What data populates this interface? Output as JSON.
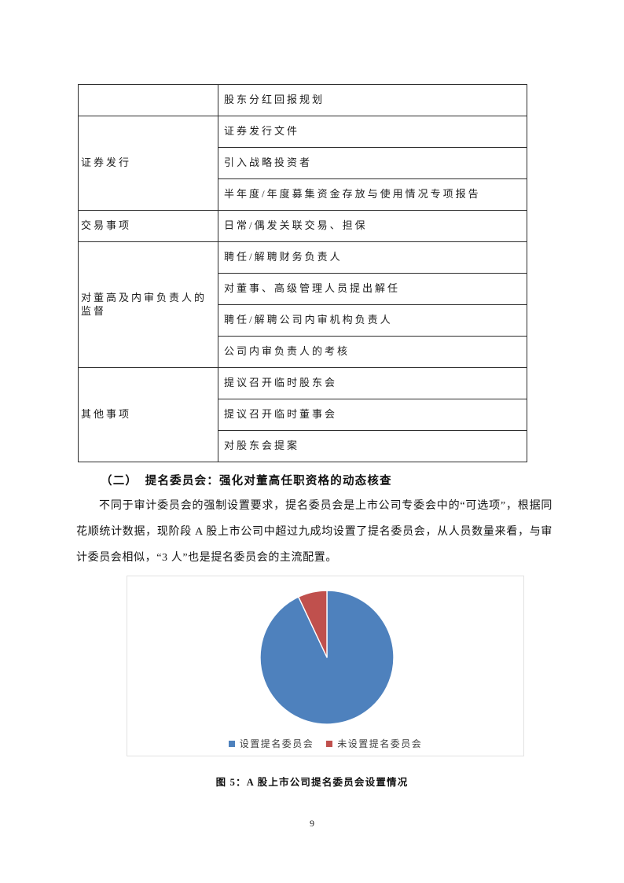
{
  "page": {
    "number": "9"
  },
  "table": {
    "groups": [
      {
        "label": "",
        "items": [
          "股东分红回报规划"
        ]
      },
      {
        "label": "证券发行",
        "items": [
          "证券发行文件",
          "引入战略投资者",
          "半年度/年度募集资金存放与使用情况专项报告"
        ]
      },
      {
        "label": "交易事项",
        "items": [
          "日常/偶发关联交易、担保"
        ]
      },
      {
        "label": "对董高及内审负责人的监督",
        "items": [
          "聘任/解聘财务负责人",
          "对董事、高级管理人员提出解任",
          "聘任/解聘公司内审机构负责人",
          "公司内审负责人的考核"
        ]
      },
      {
        "label": "其他事项",
        "items": [
          "提议召开临时股东会",
          "提议召开临时董事会",
          "对股东会提案"
        ]
      }
    ]
  },
  "section": {
    "heading": "（二）  提名委员会：强化对董高任职资格的动态核查",
    "paragraph": "不同于审计委员会的强制设置要求，提名委员会是上市公司专委会中的“可选项”，根据同花顺统计数据，现阶段 A 股上市公司中超过九成均设置了提名委员会，从人员数量来看，与审计委员会相似，“3 人”也是提名委员会的主流配置。"
  },
  "chart_data": {
    "type": "pie",
    "title": "",
    "labels": [
      "设置提名委员会",
      "未设置提名委员会"
    ],
    "values": [
      93,
      7
    ],
    "unit": "percent",
    "colors": [
      "#4E81BD",
      "#C0504D"
    ],
    "start_angle_deg": 0,
    "direction": "clockwise",
    "legend_position": "bottom",
    "slice_border_color": "#ffffff"
  },
  "figure": {
    "caption": "图 5：A 股上市公司提名委员会设置情况"
  }
}
